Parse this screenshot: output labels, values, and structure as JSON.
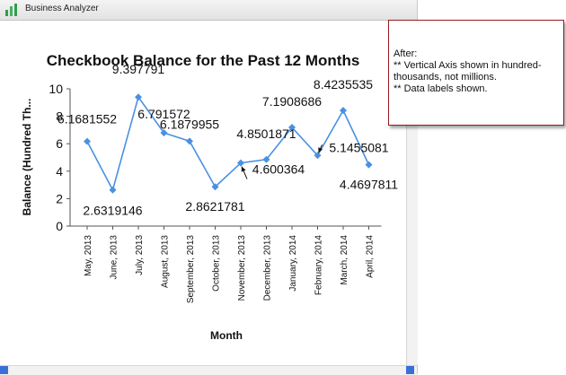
{
  "window": {
    "title": "Business Analyzer",
    "accent": "#3a6fd8"
  },
  "callout": {
    "lines": [
      "After:",
      "** Vertical Axis shown in hundred-thousands, not millions.",
      "** Data labels shown."
    ],
    "border_color": "#9a1a22"
  },
  "chart_data": {
    "type": "line",
    "title": "Checkbook Balance for the Past 12 Months",
    "xlabel": "Month",
    "ylabel": "Balance (Hundred Th...",
    "ylim": [
      0,
      10
    ],
    "yticks": [
      "0",
      "2",
      "4",
      "6",
      "8",
      "10"
    ],
    "grid": false,
    "line_color": "#4a90e2",
    "categories": [
      "May, 2013",
      "June, 2013",
      "July, 2013",
      "August, 2013",
      "September, 2013",
      "October, 2013",
      "November, 2013",
      "December, 2013",
      "January, 2014",
      "February, 2014",
      "March, 2014",
      "April, 2014"
    ],
    "values": [
      6.1681552,
      2.6319146,
      9.397791,
      6.791572,
      6.1879955,
      2.8621781,
      4.600364,
      4.8501871,
      7.1908686,
      5.1455081,
      8.4235535,
      4.4697811
    ],
    "data_labels": [
      "6.1681552",
      "2.6319146",
      "9.397791",
      "6.791572",
      "6.1879955",
      "2.8621781",
      "4.600364",
      "4.8501871",
      "7.1908686",
      "5.1455081",
      "8.4235535",
      "4.4697811"
    ]
  }
}
